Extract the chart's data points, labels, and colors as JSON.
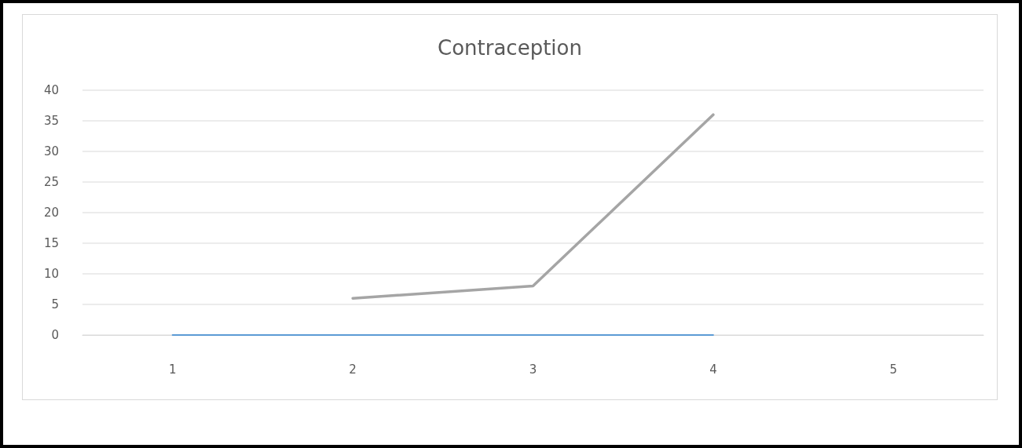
{
  "chart_data": {
    "type": "line",
    "title": "Contraception",
    "categories": [
      "1",
      "2",
      "3",
      "4",
      "5"
    ],
    "series": [
      {
        "color": "#5b9bd5",
        "values": [
          0,
          0,
          0,
          0,
          null
        ]
      },
      {
        "color": "#a5a5a5",
        "values": [
          null,
          6,
          8,
          36,
          null
        ]
      }
    ],
    "ylim": [
      0,
      40
    ],
    "yticks": [
      0,
      5,
      10,
      15,
      20,
      25,
      30,
      35,
      40
    ],
    "grid": "y",
    "marker": "none"
  }
}
